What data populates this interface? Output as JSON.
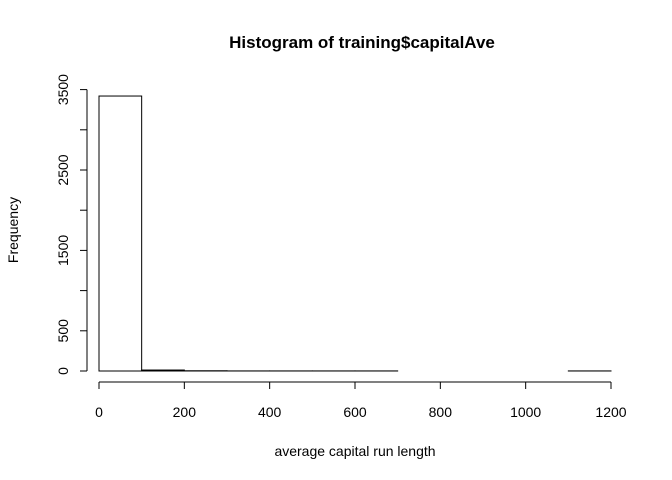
{
  "chart_data": {
    "type": "bar",
    "title": "Histogram of training$capitalAve",
    "xlabel": "average capital run length",
    "ylabel": "Frequency",
    "bin_edges": [
      0,
      100,
      200,
      300,
      400,
      500,
      600,
      700,
      800,
      900,
      1000,
      1100,
      1200
    ],
    "values": [
      3420,
      12,
      3,
      1,
      1,
      1,
      1,
      0,
      0,
      0,
      0,
      1
    ],
    "xlim": [
      0,
      1200
    ],
    "ylim": [
      0,
      3500
    ],
    "x_ticks": [
      0,
      200,
      400,
      600,
      800,
      1000,
      1200
    ],
    "y_ticks": [
      0,
      500,
      1000,
      1500,
      2000,
      2500,
      3000,
      3500
    ],
    "y_tick_labels": [
      "0",
      "500",
      "",
      "1500",
      "",
      "2500",
      "",
      "3500"
    ],
    "grid": false,
    "legend": "none"
  }
}
